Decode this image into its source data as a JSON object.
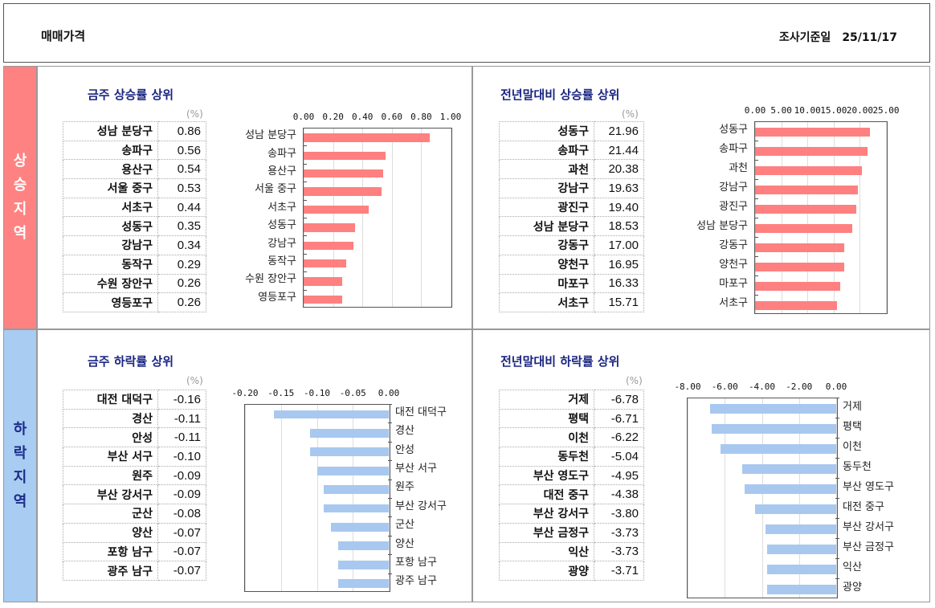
{
  "header": {
    "title": "매매가격",
    "date_label": "조사기준일",
    "date": "25/11/17"
  },
  "bands": {
    "rise": [
      "상",
      "승",
      "지",
      "역"
    ],
    "fall": [
      "하",
      "락",
      "지",
      "역"
    ]
  },
  "colors": {
    "rise_bar": "#ff8080",
    "fall_bar": "#a8c8f0",
    "title": "#1a2580"
  },
  "panels": [
    {
      "title": "금주 상승률 상위",
      "unit": "(%)",
      "rows": [
        [
          "성남 분당구",
          "0.86"
        ],
        [
          "송파구",
          "0.56"
        ],
        [
          "용산구",
          "0.54"
        ],
        [
          "서울 중구",
          "0.53"
        ],
        [
          "서초구",
          "0.44"
        ],
        [
          "성동구",
          "0.35"
        ],
        [
          "강남구",
          "0.34"
        ],
        [
          "동작구",
          "0.29"
        ],
        [
          "수원 장안구",
          "0.26"
        ],
        [
          "영등포구",
          "0.26"
        ]
      ],
      "chart_data": {
        "type": "bar",
        "orientation": "horizontal",
        "categories": [
          "성남 분당구",
          "송파구",
          "용산구",
          "서울 중구",
          "서초구",
          "성동구",
          "강남구",
          "동작구",
          "수원 장안구",
          "영등포구"
        ],
        "values": [
          0.86,
          0.56,
          0.54,
          0.53,
          0.44,
          0.35,
          0.34,
          0.29,
          0.26,
          0.26
        ],
        "xlim": [
          0,
          1
        ],
        "ticks": [
          "0.00",
          "0.20",
          "0.40",
          "0.60",
          "0.80",
          "1.00"
        ],
        "tick_values": [
          0,
          0.2,
          0.4,
          0.6,
          0.8,
          1.0
        ]
      }
    },
    {
      "title": "전년말대비 상승률 상위",
      "unit": "(%)",
      "rows": [
        [
          "성동구",
          "21.96"
        ],
        [
          "송파구",
          "21.44"
        ],
        [
          "과천",
          "20.38"
        ],
        [
          "강남구",
          "19.63"
        ],
        [
          "광진구",
          "19.40"
        ],
        [
          "성남 분당구",
          "18.53"
        ],
        [
          "강동구",
          "17.00"
        ],
        [
          "양천구",
          "16.95"
        ],
        [
          "마포구",
          "16.33"
        ],
        [
          "서초구",
          "15.71"
        ]
      ],
      "chart_data": {
        "type": "bar",
        "orientation": "horizontal",
        "categories": [
          "성동구",
          "송파구",
          "과천",
          "강남구",
          "광진구",
          "성남 분당구",
          "강동구",
          "양천구",
          "마포구",
          "서초구"
        ],
        "values": [
          21.96,
          21.44,
          20.38,
          19.63,
          19.4,
          18.53,
          17.0,
          16.95,
          16.33,
          15.71
        ],
        "xlim": [
          0,
          25
        ],
        "ticks": [
          "0.00",
          "5.00",
          "10.00",
          "15.00",
          "20.00",
          "25.00"
        ],
        "tick_values": [
          0,
          5,
          10,
          15,
          20,
          25
        ]
      }
    },
    {
      "title": "금주 하락률 상위",
      "unit": "(%)",
      "rows": [
        [
          "대전 대덕구",
          "-0.16"
        ],
        [
          "경산",
          "-0.11"
        ],
        [
          "안성",
          "-0.11"
        ],
        [
          "부산 서구",
          "-0.10"
        ],
        [
          "원주",
          "-0.09"
        ],
        [
          "부산 강서구",
          "-0.09"
        ],
        [
          "군산",
          "-0.08"
        ],
        [
          "양산",
          "-0.07"
        ],
        [
          "포항 남구",
          "-0.07"
        ],
        [
          "광주 남구",
          "-0.07"
        ]
      ],
      "chart_data": {
        "type": "bar",
        "orientation": "horizontal",
        "categories": [
          "대전 대덕구",
          "경산",
          "안성",
          "부산 서구",
          "원주",
          "부산 강서구",
          "군산",
          "양산",
          "포항 남구",
          "광주 남구"
        ],
        "values": [
          -0.16,
          -0.11,
          -0.11,
          -0.1,
          -0.09,
          -0.09,
          -0.08,
          -0.07,
          -0.07,
          -0.07
        ],
        "xlim": [
          -0.2,
          0
        ],
        "ticks": [
          "-0.20",
          "-0.15",
          "-0.10",
          "-0.05",
          "0.00"
        ],
        "tick_values": [
          -0.2,
          -0.15,
          -0.1,
          -0.05,
          0
        ]
      }
    },
    {
      "title": "전년말대비 하락률 상위",
      "unit": "(%)",
      "rows": [
        [
          "거제",
          "-6.78"
        ],
        [
          "평택",
          "-6.71"
        ],
        [
          "이천",
          "-6.22"
        ],
        [
          "동두천",
          "-5.04"
        ],
        [
          "부산 영도구",
          "-4.95"
        ],
        [
          "대전 중구",
          "-4.38"
        ],
        [
          "부산 강서구",
          "-3.80"
        ],
        [
          "부산 금정구",
          "-3.73"
        ],
        [
          "익산",
          "-3.73"
        ],
        [
          "광양",
          "-3.71"
        ]
      ],
      "chart_data": {
        "type": "bar",
        "orientation": "horizontal",
        "categories": [
          "거제",
          "평택",
          "이천",
          "동두천",
          "부산 영도구",
          "대전 중구",
          "부산 강서구",
          "부산 금정구",
          "익산",
          "광양"
        ],
        "values": [
          -6.78,
          -6.71,
          -6.22,
          -5.04,
          -4.95,
          -4.38,
          -3.8,
          -3.73,
          -3.73,
          -3.71
        ],
        "xlim": [
          -8,
          0
        ],
        "ticks": [
          "-8.00",
          "-6.00",
          "-4.00",
          "-2.00",
          "0.00"
        ],
        "tick_values": [
          -8,
          -6,
          -4,
          -2,
          0
        ]
      }
    }
  ]
}
